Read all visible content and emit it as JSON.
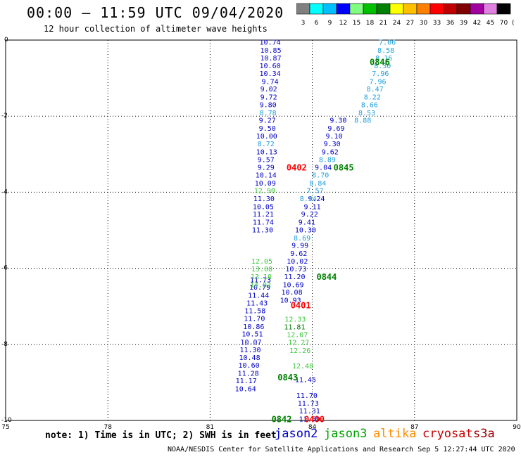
{
  "header": {
    "title": "00:00 – 11:59 UTC 09/04/2020",
    "subtitle": "12 hour collection of altimeter wave heights"
  },
  "legend": {
    "unit": "(ft)",
    "bins": [
      {
        "label": "3",
        "color": "#808080"
      },
      {
        "label": "6",
        "color": "#00ffff"
      },
      {
        "label": "9",
        "color": "#00c0ff"
      },
      {
        "label": "12",
        "color": "#0000ff"
      },
      {
        "label": "15",
        "color": "#80ff80"
      },
      {
        "label": "18",
        "color": "#00c000"
      },
      {
        "label": "21",
        "color": "#008000"
      },
      {
        "label": "24",
        "color": "#ffff00"
      },
      {
        "label": "27",
        "color": "#ffc000"
      },
      {
        "label": "30",
        "color": "#ff8000"
      },
      {
        "label": "33",
        "color": "#ff0000"
      },
      {
        "label": "36",
        "color": "#c00000"
      },
      {
        "label": "39",
        "color": "#800000"
      },
      {
        "label": "42",
        "color": "#a000a0"
      },
      {
        "label": "45",
        "color": "#e080e0"
      },
      {
        "label": "70",
        "color": "#000000"
      }
    ]
  },
  "footer": {
    "note": "note: 1) Time is in UTC; 2) SWH is in feet",
    "credit": "NOAA/NESDIS Center for Satellite Applications and Research   Sep  5 12:27:44 UTC 2020",
    "satellites": [
      {
        "name": "jason2",
        "color": "#0000c8"
      },
      {
        "name": "jason3",
        "color": "#00a000"
      },
      {
        "name": "altika",
        "color": "#ff8c00"
      },
      {
        "name": "cryosat",
        "color": "#c80000"
      },
      {
        "name": "s3a",
        "color": "#a00000"
      }
    ]
  },
  "chart_data": {
    "type": "scatter",
    "title": "00:00 – 11:59 UTC 09/04/2020",
    "xlim": [
      75,
      90
    ],
    "ylim": [
      -10,
      0
    ],
    "x_ticks": [
      "75",
      "78",
      "81",
      "84",
      "87",
      "90"
    ],
    "y_ticks": [
      "0",
      "-2",
      "-4",
      "-6",
      "-8",
      "-10"
    ],
    "grid": true,
    "series": [
      {
        "name": "jason2",
        "color": "#0000c8",
        "points": [
          {
            "x": 82.76,
            "y": -0.05,
            "v": "10.74"
          },
          {
            "x": 82.78,
            "y": -0.26,
            "v": "10.85"
          },
          {
            "x": 82.78,
            "y": -0.46,
            "v": "10.87"
          },
          {
            "x": 82.76,
            "y": -0.67,
            "v": "10.60"
          },
          {
            "x": 82.76,
            "y": -0.87,
            "v": "10.34"
          },
          {
            "x": 82.76,
            "y": -1.08,
            "v": "9.74"
          },
          {
            "x": 82.72,
            "y": -1.28,
            "v": "9.02"
          },
          {
            "x": 82.72,
            "y": -1.49,
            "v": "9.72"
          },
          {
            "x": 82.7,
            "y": -1.69,
            "v": "9.80"
          },
          {
            "x": 82.68,
            "y": -2.1,
            "v": "9.27"
          },
          {
            "x": 82.68,
            "y": -2.31,
            "v": "9.50"
          },
          {
            "x": 82.66,
            "y": -2.51,
            "v": "10.00"
          },
          {
            "x": 82.66,
            "y": -2.93,
            "v": "10.13"
          },
          {
            "x": 82.64,
            "y": -3.13,
            "v": "9.57"
          },
          {
            "x": 82.64,
            "y": -3.34,
            "v": "9.29"
          },
          {
            "x": 82.64,
            "y": -3.54,
            "v": "10.14"
          },
          {
            "x": 82.62,
            "y": -3.75,
            "v": "10.09"
          },
          {
            "x": 82.58,
            "y": -4.16,
            "v": "11.30"
          },
          {
            "x": 82.56,
            "y": -4.37,
            "v": "10.05"
          },
          {
            "x": 82.56,
            "y": -4.57,
            "v": "11.21"
          },
          {
            "x": 82.56,
            "y": -4.78,
            "v": "11.74"
          },
          {
            "x": 82.54,
            "y": -4.98,
            "v": "11.30"
          },
          {
            "x": 82.48,
            "y": -6.29,
            "v": "11.73"
          },
          {
            "x": 82.46,
            "y": -6.49,
            "v": "10.79"
          },
          {
            "x": 82.42,
            "y": -6.7,
            "v": "11.44"
          },
          {
            "x": 82.38,
            "y": -6.9,
            "v": "11.43"
          },
          {
            "x": 82.32,
            "y": -7.11,
            "v": "11.58"
          },
          {
            "x": 82.3,
            "y": -7.31,
            "v": "11.70"
          },
          {
            "x": 82.28,
            "y": -7.52,
            "v": "10.86"
          },
          {
            "x": 82.24,
            "y": -7.72,
            "v": "10.51"
          },
          {
            "x": 82.2,
            "y": -7.93,
            "v": "10.07"
          },
          {
            "x": 82.18,
            "y": -8.13,
            "v": "11.30"
          },
          {
            "x": 82.16,
            "y": -8.34,
            "v": "10.48"
          },
          {
            "x": 82.14,
            "y": -8.54,
            "v": "10.60"
          },
          {
            "x": 82.12,
            "y": -8.75,
            "v": "11.28"
          },
          {
            "x": 82.06,
            "y": -8.95,
            "v": "11.17"
          },
          {
            "x": 82.04,
            "y": -9.16,
            "v": "10.64"
          },
          {
            "x": 84.76,
            "y": -2.1,
            "v": "9.30"
          },
          {
            "x": 84.7,
            "y": -2.31,
            "v": "9.69"
          },
          {
            "x": 84.64,
            "y": -2.51,
            "v": "9.10"
          },
          {
            "x": 84.58,
            "y": -2.72,
            "v": "9.30"
          },
          {
            "x": 84.52,
            "y": -2.93,
            "v": "9.62"
          },
          {
            "x": 84.32,
            "y": -3.34,
            "v": "9.04"
          },
          {
            "x": 84.12,
            "y": -4.16,
            "v": "9.24"
          },
          {
            "x": 84.0,
            "y": -4.37,
            "v": "9.11"
          },
          {
            "x": 83.92,
            "y": -4.57,
            "v": "9.22"
          },
          {
            "x": 83.84,
            "y": -4.78,
            "v": "9.41"
          },
          {
            "x": 83.8,
            "y": -4.98,
            "v": "10.30"
          },
          {
            "x": 83.64,
            "y": -5.39,
            "v": "9.99"
          },
          {
            "x": 83.6,
            "y": -5.6,
            "v": "9.62"
          },
          {
            "x": 83.56,
            "y": -5.8,
            "v": "10.02"
          },
          {
            "x": 83.52,
            "y": -6.01,
            "v": "10.73"
          },
          {
            "x": 83.48,
            "y": -6.21,
            "v": "11.20"
          },
          {
            "x": 83.44,
            "y": -6.42,
            "v": "10.69"
          },
          {
            "x": 83.4,
            "y": -6.62,
            "v": "10.08"
          },
          {
            "x": 83.36,
            "y": -6.83,
            "v": "10.93"
          },
          {
            "x": 83.8,
            "y": -8.92,
            "v": "11.45"
          },
          {
            "x": 83.84,
            "y": -9.33,
            "v": "11.70"
          },
          {
            "x": 83.88,
            "y": -9.54,
            "v": "11.73"
          },
          {
            "x": 83.92,
            "y": -9.74,
            "v": "11.31"
          },
          {
            "x": 83.92,
            "y": -9.95,
            "v": "11.59"
          }
        ]
      },
      {
        "name": "jason2 (6-9 ft)",
        "color": "#1ea0dc",
        "points": [
          {
            "x": 86.2,
            "y": -0.05,
            "v": "7.06"
          },
          {
            "x": 86.16,
            "y": -0.26,
            "v": "8.58"
          },
          {
            "x": 86.1,
            "y": -0.46,
            "v": "8.16"
          },
          {
            "x": 86.06,
            "y": -0.67,
            "v": "8.30"
          },
          {
            "x": 86.0,
            "y": -0.87,
            "v": "7.96"
          },
          {
            "x": 85.92,
            "y": -1.08,
            "v": "7.96"
          },
          {
            "x": 85.84,
            "y": -1.28,
            "v": "8.47"
          },
          {
            "x": 85.76,
            "y": -1.49,
            "v": "8.22"
          },
          {
            "x": 85.68,
            "y": -1.69,
            "v": "8.66"
          },
          {
            "x": 85.6,
            "y": -1.9,
            "v": "8.53"
          },
          {
            "x": 85.48,
            "y": -2.1,
            "v": "8.88"
          },
          {
            "x": 82.7,
            "y": -1.9,
            "v": "8.78"
          },
          {
            "x": 82.64,
            "y": -2.72,
            "v": "8.72"
          },
          {
            "x": 84.44,
            "y": -3.13,
            "v": "8.89"
          },
          {
            "x": 84.24,
            "y": -3.54,
            "v": "8.70"
          },
          {
            "x": 84.16,
            "y": -3.75,
            "v": "8.84"
          },
          {
            "x": 84.08,
            "y": -3.95,
            "v": "7.57"
          },
          {
            "x": 83.88,
            "y": -4.16,
            "v": "8.54"
          },
          {
            "x": 83.7,
            "y": -5.19,
            "v": "8.69"
          }
        ]
      },
      {
        "name": "jason3",
        "color": "#3cc83c",
        "points": [
          {
            "x": 82.6,
            "y": -3.95,
            "v": "12.90"
          },
          {
            "x": 82.52,
            "y": -5.8,
            "v": "12.05"
          },
          {
            "x": 82.52,
            "y": -6.01,
            "v": "13.08"
          },
          {
            "x": 82.5,
            "y": -6.21,
            "v": "13.10"
          },
          {
            "x": 82.48,
            "y": -6.42,
            "v": "14.02"
          },
          {
            "x": 83.5,
            "y": -7.33,
            "v": "12.33"
          },
          {
            "x": 83.56,
            "y": -7.74,
            "v": "12.07"
          },
          {
            "x": 83.6,
            "y": -7.94,
            "v": "12.27"
          },
          {
            "x": 83.64,
            "y": -8.15,
            "v": "12.26"
          },
          {
            "x": 83.72,
            "y": -8.56,
            "v": "12.48"
          }
        ]
      },
      {
        "name": "jason3 (15-18 ft)",
        "color": "#007800",
        "points": [
          {
            "x": 83.48,
            "y": -7.53,
            "v": "11.81"
          }
        ]
      }
    ],
    "annotations": [
      {
        "x": 85.98,
        "y": -0.56,
        "text": "0846",
        "color": "#008000"
      },
      {
        "x": 84.92,
        "y": -3.34,
        "text": "0845",
        "color": "#008000"
      },
      {
        "x": 84.42,
        "y": -6.21,
        "text": "0844",
        "color": "#008000"
      },
      {
        "x": 83.28,
        "y": -8.85,
        "text": "0843",
        "color": "#008000"
      },
      {
        "x": 83.1,
        "y": -9.95,
        "text": "0842",
        "color": "#008000"
      },
      {
        "x": 83.54,
        "y": -3.34,
        "text": "0402",
        "color": "#ff0000"
      },
      {
        "x": 83.66,
        "y": -6.96,
        "text": "0401",
        "color": "#ff0000"
      },
      {
        "x": 84.06,
        "y": -9.95,
        "text": "0400",
        "color": "#ff0000"
      }
    ]
  }
}
